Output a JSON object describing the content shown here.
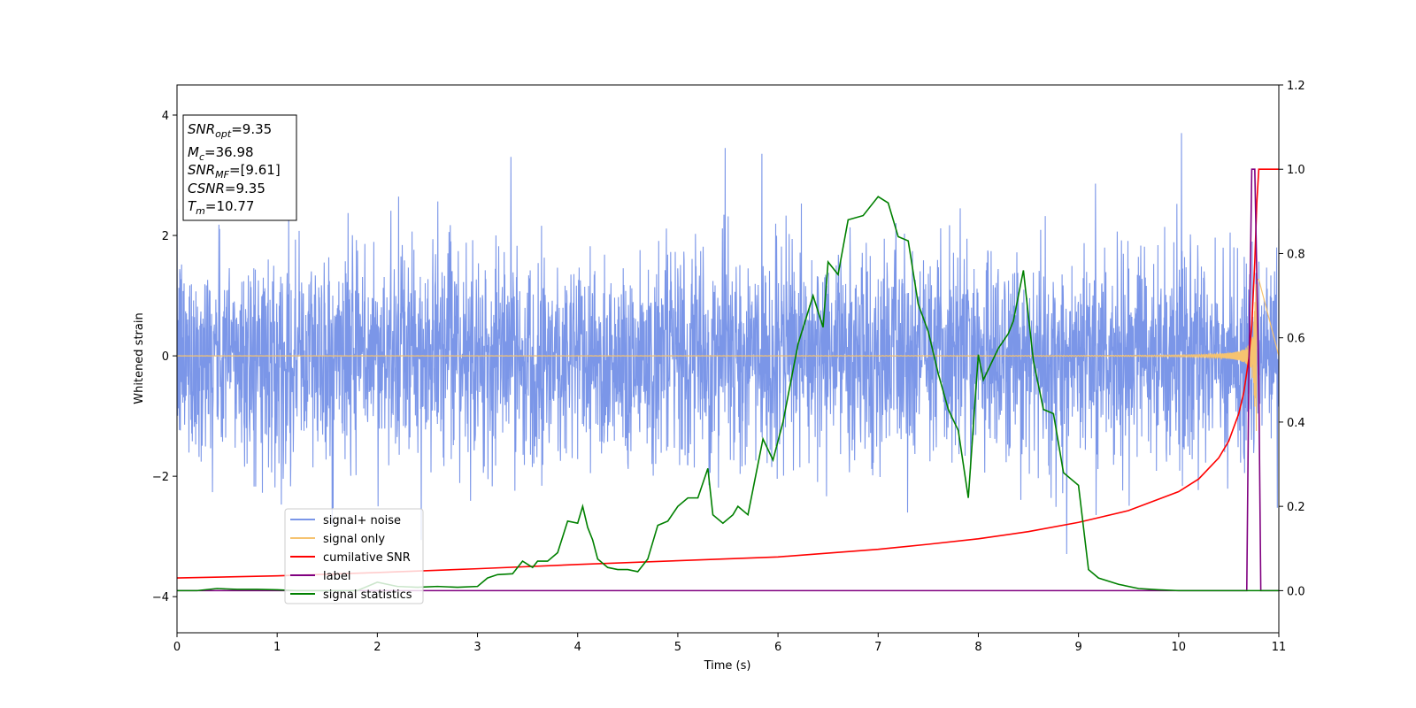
{
  "chart_data": {
    "type": "line",
    "xlabel": "Time (s)",
    "ylabel": "Whitened strain",
    "xlim": [
      0,
      11
    ],
    "ylim": [
      -4.6,
      4.5
    ],
    "ylim_right": [
      -0.1,
      1.2
    ],
    "x_ticks": [
      "0",
      "1",
      "2",
      "3",
      "4",
      "5",
      "6",
      "7",
      "8",
      "9",
      "10",
      "11"
    ],
    "y_ticks": [
      "−4",
      "−2",
      "0",
      "2",
      "4"
    ],
    "y_ticks_right": [
      "0.0",
      "0.2",
      "0.4",
      "0.6",
      "0.8",
      "1.0",
      "1.2"
    ],
    "grid": false,
    "legend_position": "lower-left",
    "info_box": {
      "position": "top-left",
      "lines": [
        {
          "main": "SNR",
          "sub": "opt",
          "value": "=9.35"
        },
        {
          "main": "M",
          "sub": "c",
          "value": "=36.98"
        },
        {
          "main": "SNR",
          "sub": "MF",
          "value": "=[9.61]"
        },
        {
          "main": "CSNR",
          "sub": "",
          "value": "=9.35"
        },
        {
          "main": "T",
          "sub": "m",
          "value": "=10.77"
        }
      ]
    },
    "series": [
      {
        "name": "signal+ noise",
        "color": "#7b96e8",
        "axis": "left",
        "description": "whitened strain noise with amplitude about ±2.2, spikes to about ±3.7, sampled across 0–11 s"
      },
      {
        "name": "signal only",
        "color": "#f6c370",
        "axis": "left",
        "description": "chirp near 0 growing from about ±0.02 to about ±1 near t=10.75 s"
      },
      {
        "name": "cumilative SNR",
        "color": "#ff0000",
        "axis": "right",
        "x": [
          0,
          1,
          2,
          3,
          4,
          5,
          6,
          7,
          7.5,
          8,
          8.5,
          9,
          9.5,
          10,
          10.2,
          10.4,
          10.5,
          10.6,
          10.65,
          10.7,
          10.73,
          10.76,
          10.78,
          10.8,
          11
        ],
        "y": [
          0.03,
          0.035,
          0.043,
          0.052,
          0.062,
          0.071,
          0.08,
          0.098,
          0.11,
          0.123,
          0.14,
          0.162,
          0.19,
          0.235,
          0.265,
          0.315,
          0.355,
          0.42,
          0.47,
          0.55,
          0.63,
          0.78,
          0.92,
          1.0,
          1.0
        ]
      },
      {
        "name": "label",
        "color": "#800080",
        "axis": "right",
        "x": [
          0,
          10.68,
          10.7,
          10.73,
          10.76,
          10.8,
          10.82,
          11
        ],
        "y": [
          0,
          0,
          0.5,
          1.0,
          1.0,
          0.5,
          0,
          0
        ]
      },
      {
        "name": "signal statistics",
        "color": "#008000",
        "axis": "right",
        "x": [
          0,
          0.2,
          0.4,
          0.6,
          0.8,
          1.0,
          1.2,
          1.4,
          1.6,
          1.8,
          2.0,
          2.1,
          2.2,
          2.4,
          2.6,
          2.8,
          3.0,
          3.1,
          3.2,
          3.35,
          3.45,
          3.55,
          3.6,
          3.7,
          3.8,
          3.9,
          4.0,
          4.05,
          4.1,
          4.15,
          4.2,
          4.3,
          4.4,
          4.5,
          4.6,
          4.7,
          4.8,
          4.9,
          5.0,
          5.1,
          5.2,
          5.3,
          5.35,
          5.45,
          5.55,
          5.6,
          5.7,
          5.8,
          5.85,
          5.95,
          6.05,
          6.2,
          6.35,
          6.45,
          6.5,
          6.6,
          6.7,
          6.85,
          7.0,
          7.1,
          7.2,
          7.3,
          7.4,
          7.5,
          7.6,
          7.7,
          7.8,
          7.9,
          8.0,
          8.05,
          8.1,
          8.2,
          8.3,
          8.35,
          8.45,
          8.55,
          8.65,
          8.75,
          8.85,
          9.0,
          9.1,
          9.2,
          9.4,
          9.6,
          9.8,
          10.0,
          10.3,
          10.6,
          11.0
        ],
        "y": [
          0.0,
          0.0,
          0.005,
          0.003,
          0.003,
          0.002,
          0.0,
          0.0,
          0.0,
          0.0,
          0.02,
          0.015,
          0.01,
          0.008,
          0.01,
          0.008,
          0.01,
          0.03,
          0.038,
          0.04,
          0.07,
          0.055,
          0.07,
          0.07,
          0.09,
          0.165,
          0.16,
          0.2,
          0.15,
          0.12,
          0.075,
          0.055,
          0.05,
          0.05,
          0.045,
          0.075,
          0.155,
          0.165,
          0.2,
          0.22,
          0.22,
          0.29,
          0.18,
          0.16,
          0.18,
          0.2,
          0.18,
          0.3,
          0.36,
          0.31,
          0.4,
          0.585,
          0.7,
          0.625,
          0.78,
          0.75,
          0.88,
          0.89,
          0.935,
          0.92,
          0.84,
          0.83,
          0.68,
          0.615,
          0.515,
          0.43,
          0.38,
          0.22,
          0.56,
          0.5,
          0.525,
          0.575,
          0.61,
          0.64,
          0.76,
          0.545,
          0.43,
          0.42,
          0.28,
          0.25,
          0.05,
          0.03,
          0.015,
          0.005,
          0.002,
          0.0,
          0.0,
          0.0,
          0.0
        ]
      }
    ]
  }
}
